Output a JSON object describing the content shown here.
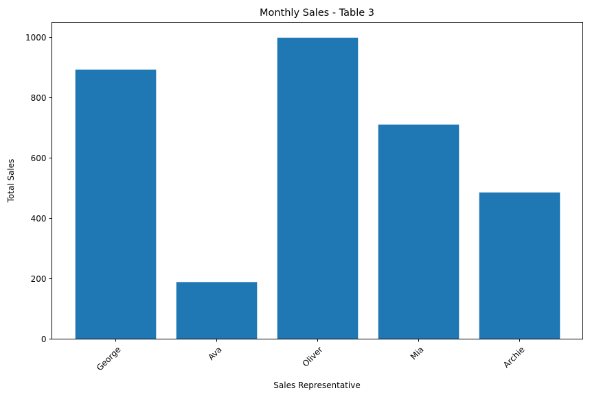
{
  "chart_data": {
    "type": "bar",
    "title": "Monthly Sales - Table 3",
    "xlabel": "Sales Representative",
    "ylabel": "Total Sales",
    "categories": [
      "George",
      "Ava",
      "Oliver",
      "Mia",
      "Archie"
    ],
    "values": [
      893,
      189,
      999,
      711,
      486
    ],
    "ylim": [
      0,
      1050
    ],
    "yticks": [
      0,
      200,
      400,
      600,
      800,
      1000
    ],
    "bar_color": "#1f77b4",
    "grid": false,
    "x_tick_rotation_deg": 45
  }
}
